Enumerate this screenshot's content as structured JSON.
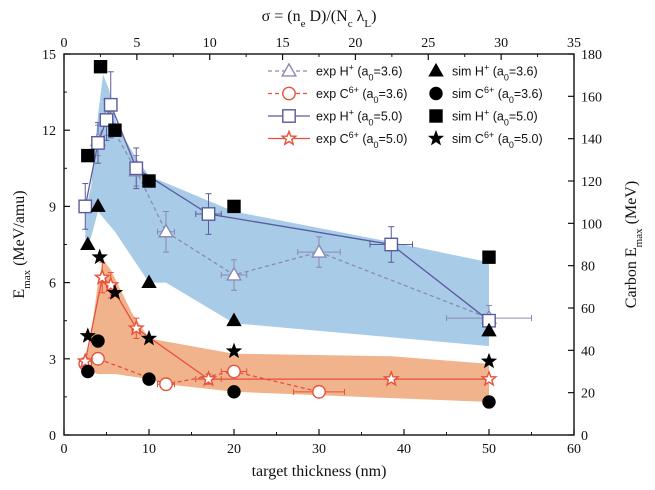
{
  "chart_data": {
    "type": "scatter",
    "x_axis": {
      "label": "target thickness (nm)",
      "range": [
        0,
        60
      ],
      "ticks": [
        0,
        10,
        20,
        30,
        40,
        50,
        60
      ]
    },
    "top_axis": {
      "label_parts": [
        "σ = (n",
        "e",
        " D)/(N",
        "c",
        " λ",
        "L",
        ")"
      ],
      "range": [
        0,
        35
      ],
      "ticks": [
        0,
        5,
        10,
        15,
        20,
        25,
        30,
        35
      ]
    },
    "y_axis": {
      "label_parts": [
        "E",
        "max",
        " (MeV/amu)"
      ],
      "range": [
        0,
        15
      ],
      "ticks": [
        0,
        3,
        6,
        9,
        12,
        15
      ]
    },
    "right_axis": {
      "label_parts": [
        "Carbon E",
        "max",
        " (MeV)"
      ],
      "range": [
        0,
        180
      ],
      "ticks": [
        0,
        20,
        40,
        60,
        80,
        100,
        120,
        140,
        160,
        180
      ]
    },
    "bands": [
      {
        "name": "proton-band",
        "color": "#a8cbe8",
        "upper": [
          [
            2.5,
            8.8
          ],
          [
            3.2,
            9.8
          ],
          [
            4.0,
            12.6
          ],
          [
            4.6,
            14.2
          ],
          [
            5.3,
            13.6
          ],
          [
            6.2,
            12.2
          ],
          [
            8.5,
            10.9
          ],
          [
            10.0,
            10.2
          ],
          [
            20.0,
            8.8
          ],
          [
            38.5,
            7.6
          ],
          [
            50.0,
            6.8
          ]
        ],
        "lower": [
          [
            50.0,
            3.5
          ],
          [
            20.0,
            4.4
          ],
          [
            12.0,
            6.0
          ],
          [
            10.0,
            6.0
          ],
          [
            6.0,
            8.0
          ],
          [
            4.0,
            8.8
          ],
          [
            3.2,
            7.8
          ],
          [
            2.5,
            7.3
          ]
        ]
      },
      {
        "name": "carbon-band",
        "color": "#f1b38c",
        "upper": [
          [
            2.5,
            3.0
          ],
          [
            3.0,
            3.5
          ],
          [
            4.0,
            6.0
          ],
          [
            4.6,
            6.9
          ],
          [
            5.5,
            6.5
          ],
          [
            8.0,
            4.8
          ],
          [
            10.0,
            3.8
          ],
          [
            20.0,
            3.2
          ],
          [
            38.5,
            3.1
          ],
          [
            50.0,
            2.8
          ]
        ],
        "lower": [
          [
            50.0,
            1.3
          ],
          [
            20.0,
            1.7
          ],
          [
            12.0,
            2.0
          ],
          [
            10.0,
            2.2
          ],
          [
            6.0,
            2.4
          ],
          [
            4.0,
            2.4
          ],
          [
            3.0,
            2.5
          ],
          [
            2.5,
            2.6
          ]
        ]
      }
    ],
    "series": [
      {
        "name_parts": [
          "exp H",
          "+",
          " (a",
          "0",
          "=3.6)"
        ],
        "marker": "triangle-open",
        "color": "#8a8ab5",
        "line": "dashed",
        "points": [
          {
            "x": 4,
            "y": 11.6,
            "xerr": 0.6,
            "yerr": 0.6
          },
          {
            "x": 5,
            "y": 12.5,
            "xerr": 0.6,
            "yerr": 0.7
          },
          {
            "x": 8.5,
            "y": 10.4,
            "xerr": 0.6,
            "yerr": 0.6
          },
          {
            "x": 12,
            "y": 8.0,
            "xerr": 1.0,
            "yerr": 0.8
          },
          {
            "x": 20,
            "y": 6.3,
            "xerr": 1.5,
            "yerr": 0.6
          },
          {
            "x": 30,
            "y": 7.2,
            "xerr": 2.5,
            "yerr": 0.6
          },
          {
            "x": 50,
            "y": 4.6,
            "xerr": 5.0,
            "yerr": 0.5
          }
        ]
      },
      {
        "name_parts": [
          "exp C",
          "6+",
          " (a",
          "0",
          "=3.6)"
        ],
        "marker": "circle-open",
        "color": "#e8503a",
        "line": "dashed",
        "points": [
          {
            "x": 2.5,
            "y": 2.8,
            "xerr": 0.4,
            "yerr": 0.2
          },
          {
            "x": 4,
            "y": 3.0,
            "xerr": 0.5,
            "yerr": 0.2
          },
          {
            "x": 12,
            "y": 2.0,
            "xerr": 1.0,
            "yerr": 0.2
          },
          {
            "x": 20,
            "y": 2.5,
            "xerr": 1.5,
            "yerr": 0.2
          },
          {
            "x": 30,
            "y": 1.7,
            "xerr": 3.0,
            "yerr": 0.2
          }
        ]
      },
      {
        "name_parts": [
          "exp H",
          "+",
          " (a",
          "0",
          "=5.0)"
        ],
        "marker": "square-open",
        "color": "#5a5a9e",
        "line": "solid",
        "points": [
          {
            "x": 2.5,
            "y": 9.0,
            "xerr": 0.5,
            "yerr": 0.9
          },
          {
            "x": 4,
            "y": 11.5,
            "xerr": 0.5,
            "yerr": 0.8
          },
          {
            "x": 5,
            "y": 12.4,
            "xerr": 0.5,
            "yerr": 0.8
          },
          {
            "x": 5.5,
            "y": 13.0,
            "xerr": 0.5,
            "yerr": 1.3
          },
          {
            "x": 8.5,
            "y": 10.5,
            "xerr": 0.5,
            "yerr": 0.8
          },
          {
            "x": 17,
            "y": 8.7,
            "xerr": 1.5,
            "yerr": 0.8
          },
          {
            "x": 38.5,
            "y": 7.5,
            "xerr": 2.5,
            "yerr": 0.7
          },
          {
            "x": 50,
            "y": 4.5,
            "xerr": 0,
            "yerr": 0
          }
        ]
      },
      {
        "name_parts": [
          "exp C",
          "6+",
          " (a",
          "0",
          "=5.0)"
        ],
        "marker": "star-open",
        "color": "#e8503a",
        "line": "solid",
        "points": [
          {
            "x": 2.5,
            "y": 2.9,
            "xerr": 0,
            "yerr": 0
          },
          {
            "x": 4.5,
            "y": 6.2,
            "xerr": 0.4,
            "yerr": 0.6
          },
          {
            "x": 5.5,
            "y": 5.9,
            "xerr": 0.5,
            "yerr": 0.5
          },
          {
            "x": 8.5,
            "y": 4.2,
            "xerr": 0.5,
            "yerr": 0.4
          },
          {
            "x": 17,
            "y": 2.2,
            "xerr": 1.5,
            "yerr": 0.2
          },
          {
            "x": 38.5,
            "y": 2.2,
            "xerr": 0,
            "yerr": 0
          },
          {
            "x": 50,
            "y": 2.2,
            "xerr": 0,
            "yerr": 0
          }
        ]
      },
      {
        "name_parts": [
          "sim H",
          "+",
          " (a",
          "0",
          "=3.6)"
        ],
        "marker": "triangle-filled",
        "color": "#000000",
        "line": "none",
        "points": [
          {
            "x": 2.8,
            "y": 7.5
          },
          {
            "x": 4,
            "y": 9.0
          },
          {
            "x": 10,
            "y": 6.0
          },
          {
            "x": 20,
            "y": 4.5
          },
          {
            "x": 50,
            "y": 4.1
          }
        ]
      },
      {
        "name_parts": [
          "sim C",
          "6+",
          " (a",
          "0",
          "=3.6)"
        ],
        "marker": "circle-filled",
        "color": "#000000",
        "line": "none",
        "points": [
          {
            "x": 2.8,
            "y": 2.5
          },
          {
            "x": 4,
            "y": 3.7
          },
          {
            "x": 10,
            "y": 2.2
          },
          {
            "x": 20,
            "y": 1.7
          },
          {
            "x": 50,
            "y": 1.3
          }
        ]
      },
      {
        "name_parts": [
          "sim H",
          "+",
          " (a",
          "0",
          "=5.0)"
        ],
        "marker": "square-filled",
        "color": "#000000",
        "line": "none",
        "points": [
          {
            "x": 2.8,
            "y": 11.0
          },
          {
            "x": 4.3,
            "y": 14.5
          },
          {
            "x": 6,
            "y": 12.0
          },
          {
            "x": 10,
            "y": 10.0
          },
          {
            "x": 20,
            "y": 9.0
          },
          {
            "x": 50,
            "y": 7.0
          }
        ]
      },
      {
        "name_parts": [
          "sim C",
          "6+",
          " (a",
          "0",
          "=5.0)"
        ],
        "marker": "star-filled",
        "color": "#000000",
        "line": "none",
        "points": [
          {
            "x": 2.8,
            "y": 3.9
          },
          {
            "x": 4.2,
            "y": 7.0
          },
          {
            "x": 6,
            "y": 5.6
          },
          {
            "x": 10,
            "y": 3.8
          },
          {
            "x": 20,
            "y": 3.3
          },
          {
            "x": 50,
            "y": 2.9
          }
        ]
      }
    ],
    "legend": {
      "position": "top-right",
      "columns": 2
    }
  }
}
